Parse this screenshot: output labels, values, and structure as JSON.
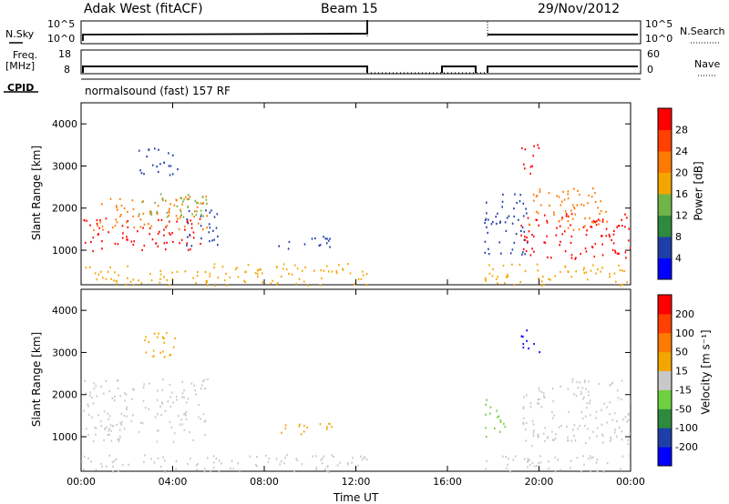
{
  "header": {
    "station": "Adak West (fitACF)",
    "beam": "Beam 15",
    "date": "29/Nov/2012"
  },
  "status_panels": {
    "nsky_label": "N.Sky",
    "nsearch_label": "N.Search",
    "freq_label_line1": "Freq.",
    "freq_label_line2": "[MHz]",
    "nave_label": "Nave",
    "cpid_label": "CPID",
    "noise_left_ticks": [
      "10^5",
      "10^0"
    ],
    "noise_right_ticks": [
      "10^5",
      "10^0"
    ],
    "freq_left_ticks": [
      "18",
      "8"
    ],
    "freq_right_ticks": [
      "60",
      "0"
    ],
    "cpid_text": "normalsound (fast) 157 RF"
  },
  "axes": {
    "x_ticks": [
      "00:00",
      "04:00",
      "08:00",
      "12:00",
      "16:00",
      "20:00",
      "00:00"
    ],
    "x_label": "Time UT",
    "y_label": "Slant Range [km]",
    "y_ticks": [
      "1000",
      "2000",
      "3000",
      "4000"
    ]
  },
  "colorbars": {
    "power": {
      "label": "Power [dB]",
      "ticks": [
        "28",
        "24",
        "20",
        "16",
        "12",
        "8",
        "4"
      ],
      "colors": [
        "#0000ff",
        "#1f3fa8",
        "#2d8a3e",
        "#6fb548",
        "#f5a500",
        "#ff7a00",
        "#ff4000",
        "#ff0000"
      ]
    },
    "velocity": {
      "label": "Velocity [m s⁻¹]",
      "ticks": [
        "200",
        "100",
        "50",
        "15",
        "-15",
        "-50",
        "-100",
        "-200"
      ],
      "colors": [
        "#0000ff",
        "#1f3fa8",
        "#2d8a3e",
        "#6fd040",
        "#c8c8c8",
        "#f5a500",
        "#ff7a00",
        "#ff4000",
        "#ff0000"
      ]
    }
  },
  "chart_data": {
    "type": "heatmap",
    "x_range_hours": [
      0,
      24
    ],
    "y_range_km": [
      180,
      4500
    ],
    "data_gap_hours": [
      12.5,
      17.6
    ],
    "power_regions": [
      {
        "t0": 0.1,
        "t1": 5.2,
        "r0": 1000,
        "r1": 1800,
        "color": "#ff0000"
      },
      {
        "t0": 0.5,
        "t1": 5.5,
        "r0": 1500,
        "r1": 2300,
        "color": "#ff7a00"
      },
      {
        "t0": 2.5,
        "t1": 5.6,
        "r0": 1800,
        "r1": 2400,
        "color": "#6fb548"
      },
      {
        "t0": 4.5,
        "t1": 6.0,
        "r0": 1100,
        "r1": 2000,
        "color": "#1f3fa8"
      },
      {
        "t0": 2.5,
        "t1": 4.2,
        "r0": 2800,
        "r1": 3500,
        "color": "#1f3fa8"
      },
      {
        "t0": 8.5,
        "t1": 11.2,
        "r0": 1050,
        "r1": 1350,
        "color": "#1f3fa8"
      },
      {
        "t0": 0.0,
        "t1": 12.5,
        "r0": 180,
        "r1": 700,
        "color": "#f5a500"
      },
      {
        "t0": 17.6,
        "t1": 24.0,
        "r0": 180,
        "r1": 700,
        "color": "#f5a500"
      },
      {
        "t0": 17.6,
        "t1": 19.5,
        "r0": 900,
        "r1": 2400,
        "color": "#1f3fa8"
      },
      {
        "t0": 19.2,
        "t1": 24.0,
        "r0": 800,
        "r1": 1900,
        "color": "#ff0000"
      },
      {
        "t0": 19.5,
        "t1": 23.0,
        "r0": 1500,
        "r1": 2500,
        "color": "#ff7a00"
      },
      {
        "t0": 19.2,
        "t1": 20.0,
        "r0": 2800,
        "r1": 3550,
        "color": "#ff0000"
      }
    ],
    "velocity_regions": [
      {
        "t0": 0.1,
        "t1": 5.5,
        "r0": 900,
        "r1": 2400,
        "color": "#c8c8c8"
      },
      {
        "t0": 2.5,
        "t1": 4.2,
        "r0": 2800,
        "r1": 3500,
        "color": "#f5a500"
      },
      {
        "t0": 8.5,
        "t1": 11.2,
        "r0": 1050,
        "r1": 1350,
        "color": "#f5a500"
      },
      {
        "t0": 0.0,
        "t1": 12.5,
        "r0": 180,
        "r1": 600,
        "color": "#c8c8c8"
      },
      {
        "t0": 17.6,
        "t1": 24.0,
        "r0": 180,
        "r1": 600,
        "color": "#c8c8c8"
      },
      {
        "t0": 19.2,
        "t1": 24.0,
        "r0": 800,
        "r1": 2400,
        "color": "#c8c8c8"
      },
      {
        "t0": 17.6,
        "t1": 18.6,
        "r0": 1000,
        "r1": 1900,
        "color": "#6fd040"
      },
      {
        "t0": 19.2,
        "t1": 20.0,
        "r0": 2900,
        "r1": 3550,
        "color": "#0000ff"
      }
    ]
  }
}
